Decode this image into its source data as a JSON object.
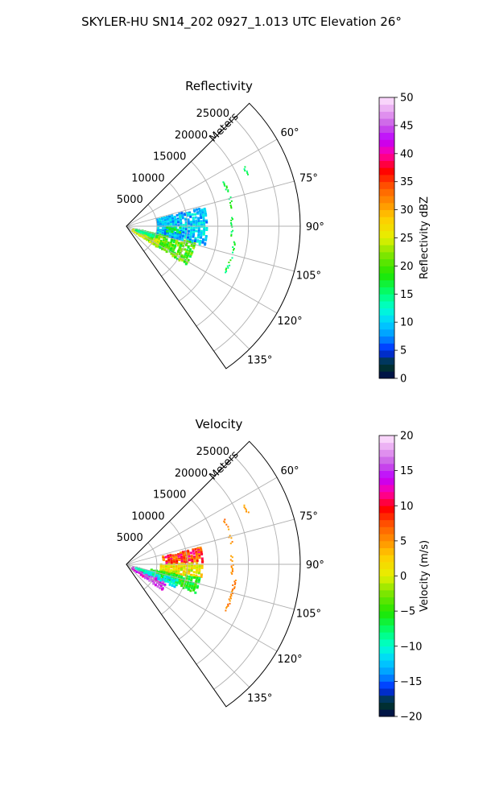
{
  "figure": {
    "title": "SKYLER-HU  SN14_202  0927_1.013 UTC Elevation 26°"
  },
  "colors": {
    "grid": "#b0b0b0",
    "frame": "#000000",
    "background": "#ffffff"
  },
  "chart_data": [
    {
      "type": "heatmap",
      "title": "Reflectivity",
      "range_label": "Meters",
      "projection": "polar-sector",
      "range_lim": [
        0,
        28500
      ],
      "azimuth_lim": [
        45,
        145
      ],
      "range_ticks": [
        {
          "value": 5000,
          "label": "5000"
        },
        {
          "value": 10000,
          "label": "10000"
        },
        {
          "value": 15000,
          "label": "15000"
        },
        {
          "value": 20000,
          "label": "20000"
        },
        {
          "value": 25000,
          "label": "25000"
        }
      ],
      "azimuth_ticks": [
        {
          "value": 60,
          "label": "60°"
        },
        {
          "value": 75,
          "label": "75°"
        },
        {
          "value": 90,
          "label": "90°"
        },
        {
          "value": 105,
          "label": "105°"
        },
        {
          "value": 120,
          "label": "120°"
        },
        {
          "value": 135,
          "label": "135°"
        }
      ],
      "colorbar": {
        "label": "Reflectivity dBZ",
        "lim": [
          0,
          50
        ],
        "ticks": [
          "0",
          "5",
          "10",
          "15",
          "20",
          "25",
          "30",
          "35",
          "40",
          "45",
          "50"
        ]
      },
      "regions": [
        {
          "az": [
            75,
            103
          ],
          "r": [
            5000,
            13000
          ],
          "values": [
            6,
            13
          ],
          "density": 0.72,
          "seed": 11
        },
        {
          "az": [
            103,
            122
          ],
          "r": [
            2500,
            11500
          ],
          "values": [
            16,
            24
          ],
          "density": 0.62,
          "seed": 12
        },
        {
          "az": [
            113,
            124
          ],
          "r": [
            1000,
            6000
          ],
          "values": [
            22,
            26
          ],
          "density": 0.55,
          "seed": 13
        },
        {
          "az": [
            104,
            111
          ],
          "r": [
            1500,
            4500
          ],
          "values": [
            13,
            17
          ],
          "density": 0.55,
          "seed": 14
        },
        {
          "az": [
            90,
            96
          ],
          "r": [
            6500,
            9000
          ],
          "values": [
            15,
            20
          ],
          "density": 0.4,
          "seed": 15
        }
      ],
      "arcs": [
        {
          "az": [
            65,
            71
          ],
          "r": 17500,
          "values": [
            14,
            19
          ],
          "seed": 21
        },
        {
          "az": [
            74,
            80
          ],
          "r": 17500,
          "values": [
            14,
            19
          ],
          "seed": 22
        },
        {
          "az": [
            85,
            95
          ],
          "r": 17200,
          "values": [
            14,
            19
          ],
          "seed": 23
        },
        {
          "az": [
            98,
            115
          ],
          "r": 17800,
          "values": [
            14,
            21
          ],
          "seed": 24
        },
        {
          "az": [
            63,
            67
          ],
          "r": 21500,
          "values": [
            14,
            18
          ],
          "seed": 25
        }
      ]
    },
    {
      "type": "heatmap",
      "title": "Velocity",
      "range_label": "Meters",
      "projection": "polar-sector",
      "range_lim": [
        0,
        28500
      ],
      "azimuth_lim": [
        45,
        145
      ],
      "range_ticks": [
        {
          "value": 5000,
          "label": "5000"
        },
        {
          "value": 10000,
          "label": "10000"
        },
        {
          "value": 15000,
          "label": "15000"
        },
        {
          "value": 20000,
          "label": "20000"
        },
        {
          "value": 25000,
          "label": "25000"
        }
      ],
      "azimuth_ticks": [
        {
          "value": 60,
          "label": "60°"
        },
        {
          "value": 75,
          "label": "75°"
        },
        {
          "value": 90,
          "label": "90°"
        },
        {
          "value": 105,
          "label": "105°"
        },
        {
          "value": 120,
          "label": "120°"
        },
        {
          "value": 135,
          "label": "135°"
        }
      ],
      "colorbar": {
        "label": "Velocity (m/s)",
        "lim": [
          -20,
          20
        ],
        "ticks": [
          "−20",
          "−15",
          "−10",
          "−5",
          "0",
          "5",
          "10",
          "15",
          "20"
        ]
      },
      "regions": [
        {
          "az": [
            76,
            88
          ],
          "r": [
            6000,
            12500
          ],
          "values": [
            4,
            12
          ],
          "density": 0.72,
          "seed": 31
        },
        {
          "az": [
            88,
            100
          ],
          "r": [
            5500,
            12500
          ],
          "values": [
            -2,
            4
          ],
          "density": 0.7,
          "seed": 32
        },
        {
          "az": [
            100,
            112
          ],
          "r": [
            4000,
            12000
          ],
          "values": [
            -8,
            -3
          ],
          "density": 0.62,
          "seed": 33
        },
        {
          "az": [
            112,
            125
          ],
          "r": [
            1000,
            7000
          ],
          "values": [
            12,
            17
          ],
          "density": 0.6,
          "seed": 34
        },
        {
          "az": [
            105,
            115
          ],
          "r": [
            3000,
            8500
          ],
          "values": [
            -13,
            -9
          ],
          "density": 0.55,
          "seed": 35
        },
        {
          "az": [
            104,
            110
          ],
          "r": [
            1500,
            4500
          ],
          "values": [
            -11,
            -8
          ],
          "density": 0.5,
          "seed": 36
        }
      ],
      "arcs": [
        {
          "az": [
            65,
            71
          ],
          "r": 17500,
          "values": [
            4,
            7
          ],
          "seed": 41
        },
        {
          "az": [
            74,
            80
          ],
          "r": 17500,
          "values": [
            4,
            7
          ],
          "seed": 42
        },
        {
          "az": [
            85,
            95
          ],
          "r": 17200,
          "values": [
            4,
            7
          ],
          "seed": 43
        },
        {
          "az": [
            98,
            115
          ],
          "r": 17800,
          "values": [
            4,
            7
          ],
          "seed": 44
        },
        {
          "az": [
            63,
            67
          ],
          "r": 21500,
          "values": [
            3,
            6
          ],
          "seed": 45
        }
      ]
    }
  ]
}
